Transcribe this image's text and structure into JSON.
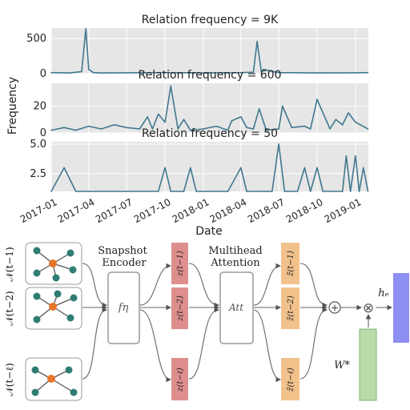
{
  "chart_data": [
    {
      "type": "line",
      "title": "Relation frequency = 9K",
      "ylim": [
        0,
        650
      ],
      "yticks": [
        "0",
        "500"
      ],
      "grid": true,
      "series": [
        {
          "x": [
            "2017-01-01",
            "2017-02-15",
            "2017-03-15",
            "2017-03-25",
            "2017-04-01",
            "2017-04-12",
            "2017-05-01",
            "2017-07-01",
            "2017-10-01",
            "2018-01-01",
            "2018-04-01",
            "2018-05-01",
            "2018-05-10",
            "2018-05-20",
            "2018-05-25",
            "2018-07-01",
            "2018-10-01",
            "2019-01-01",
            "2019-01-31"
          ],
          "values": [
            15,
            10,
            30,
            640,
            60,
            15,
            10,
            12,
            15,
            10,
            15,
            20,
            460,
            30,
            60,
            15,
            10,
            12,
            15
          ]
        }
      ]
    },
    {
      "type": "line",
      "title": "Relation frequency = 600",
      "ylim": [
        0,
        37
      ],
      "yticks": [
        "0",
        "20"
      ],
      "grid": true,
      "series": [
        {
          "x": [
            "2017-01-01",
            "2017-02-01",
            "2017-03-01",
            "2017-04-01",
            "2017-05-01",
            "2017-06-01",
            "2017-07-01",
            "2017-08-01",
            "2017-08-20",
            "2017-09-01",
            "2017-09-15",
            "2017-10-01",
            "2017-10-15",
            "2017-11-01",
            "2017-11-15",
            "2017-12-01",
            "2018-01-01",
            "2018-02-01",
            "2018-03-01",
            "2018-03-10",
            "2018-04-01",
            "2018-04-15",
            "2018-05-01",
            "2018-05-15",
            "2018-06-01",
            "2018-07-01",
            "2018-07-10",
            "2018-08-01",
            "2018-09-01",
            "2018-09-15",
            "2018-10-01",
            "2018-11-01",
            "2018-11-15",
            "2018-12-01",
            "2018-12-15",
            "2019-01-01",
            "2019-01-31"
          ],
          "values": [
            2,
            4,
            2,
            5,
            3,
            6,
            4,
            3,
            12,
            3,
            14,
            8,
            35,
            3,
            10,
            2,
            3,
            5,
            2,
            9,
            12,
            4,
            3,
            18,
            2,
            3,
            20,
            4,
            5,
            3,
            25,
            3,
            10,
            6,
            15,
            8,
            3
          ]
        }
      ]
    },
    {
      "type": "line",
      "title": "Relation frequency = 50",
      "xlabel": "Date",
      "ylabel": "Frequency",
      "ylim": [
        1,
        5.2
      ],
      "yticks": [
        "2.5",
        "5.0"
      ],
      "xticks": [
        "2017-01",
        "2017-04",
        "2017-07",
        "2017-10",
        "2018-01",
        "2018-04",
        "2018-07",
        "2018-10",
        "2019-01"
      ],
      "grid": true,
      "series": [
        {
          "x": [
            "2017-01-01",
            "2017-02-01",
            "2017-03-01",
            "2017-04-01",
            "2017-07-01",
            "2017-09-15",
            "2017-10-01",
            "2017-10-15",
            "2017-11-15",
            "2017-12-01",
            "2017-12-15",
            "2018-03-01",
            "2018-04-01",
            "2018-04-15",
            "2018-06-15",
            "2018-07-01",
            "2018-07-15",
            "2018-08-15",
            "2018-09-01",
            "2018-09-15",
            "2018-10-01",
            "2018-10-15",
            "2018-12-01",
            "2018-12-10",
            "2018-12-20",
            "2019-01-01",
            "2019-01-10",
            "2019-01-20",
            "2019-01-31"
          ],
          "values": [
            1,
            3,
            1,
            1,
            1,
            1,
            3,
            1,
            1,
            3,
            1,
            1,
            3,
            1,
            1,
            5,
            1,
            1,
            3,
            1,
            3,
            1,
            1,
            4,
            1,
            4,
            1,
            3,
            1
          ]
        }
      ]
    }
  ],
  "diagram": {
    "left_labels": [
      "𝒩(t−1)",
      "𝒩(t−2)",
      "𝒩(t−ℓ)"
    ],
    "encoder_title": [
      "Snapshot",
      "Encoder"
    ],
    "encoder_symbol": "fη",
    "z_labels": [
      "z(t−1)",
      "z(t−2)",
      "z(t−ℓ)"
    ],
    "attention_title": [
      "Multihead",
      "Attention"
    ],
    "att_symbol": "Att",
    "ztilde_labels": [
      "z̃(t−1)",
      "z̃(t−2)",
      "z̃(t−ℓ)"
    ],
    "plus_symbol": "+",
    "times_symbol": "⊗",
    "he_label": "hₑ",
    "w_label": "W*",
    "colors": {
      "line": "#40788f",
      "axes_bg": "#e6e6e6",
      "node_center": "#e8762a",
      "node_outer": "#2f7d74",
      "z_box": "#df8e8e",
      "ztilde_box": "#f2c28d",
      "w_box": "#b8dbaa",
      "he_box": "#8d8ff3"
    }
  }
}
